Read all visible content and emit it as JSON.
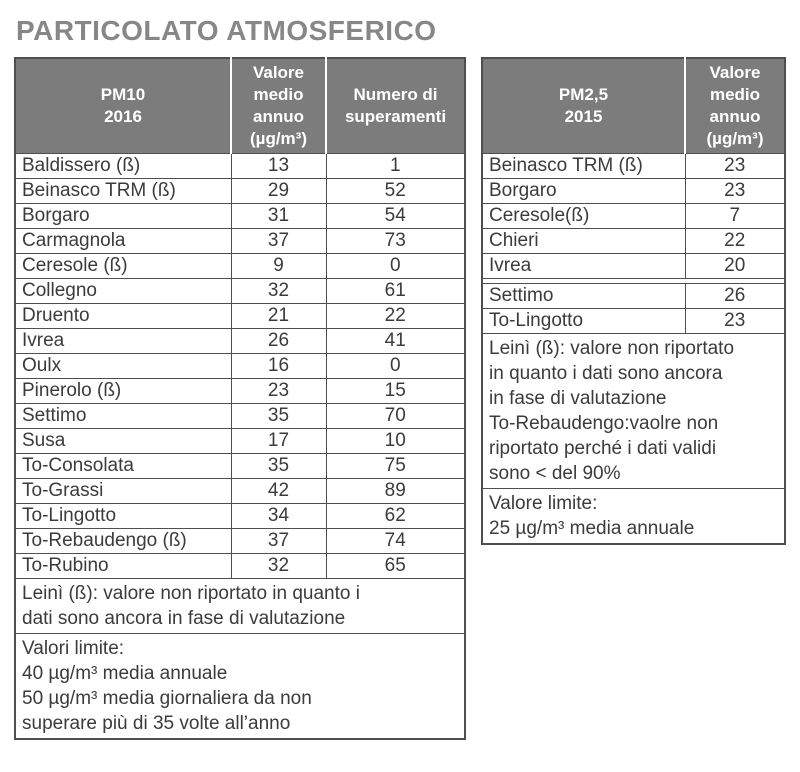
{
  "page": {
    "title": "PARTICOLATO ATMOSFERICO"
  },
  "colors": {
    "title_gray": "#878787",
    "header_bg": "#7c7c7c",
    "border": "#4f4f4f",
    "text": "#3b3b3b",
    "alert_red": "#c2382f"
  },
  "pm10_table": {
    "header": {
      "station": "PM10\n2016",
      "mean": "Valore\nmedio\nannuo\n(µg/m³)",
      "exceed": "Numero di\nsuperamenti"
    },
    "rows": [
      {
        "station": "Baldissero (ß)",
        "mean": "13",
        "mean_red": false,
        "exceed": "1",
        "exceed_red": false
      },
      {
        "station": "Beinasco TRM (ß)",
        "mean": "29",
        "mean_red": false,
        "exceed": "52",
        "exceed_red": true
      },
      {
        "station": "Borgaro",
        "mean": "31",
        "mean_red": false,
        "exceed": "54",
        "exceed_red": true
      },
      {
        "station": "Carmagnola",
        "mean": "37",
        "mean_red": false,
        "exceed": "73",
        "exceed_red": true
      },
      {
        "station": "Ceresole (ß)",
        "mean": "9",
        "mean_red": false,
        "exceed": "0",
        "exceed_red": false
      },
      {
        "station": "Collegno",
        "mean": "32",
        "mean_red": false,
        "exceed": "61",
        "exceed_red": true
      },
      {
        "station": "Druento",
        "mean": "21",
        "mean_red": false,
        "exceed": "22",
        "exceed_red": false
      },
      {
        "station": "Ivrea",
        "mean": "26",
        "mean_red": false,
        "exceed": "41",
        "exceed_red": true
      },
      {
        "station": "Oulx",
        "mean": "16",
        "mean_red": false,
        "exceed": "0",
        "exceed_red": false
      },
      {
        "station": "Pinerolo (ß)",
        "mean": "23",
        "mean_red": false,
        "exceed": "15",
        "exceed_red": false
      },
      {
        "station": "Settimo",
        "mean": "35",
        "mean_red": false,
        "exceed": "70",
        "exceed_red": true
      },
      {
        "station": "Susa",
        "mean": "17",
        "mean_red": false,
        "exceed": "10",
        "exceed_red": false
      },
      {
        "station": "To-Consolata",
        "mean": "35",
        "mean_red": false,
        "exceed": "75",
        "exceed_red": true
      },
      {
        "station": "To-Grassi",
        "mean": "42",
        "mean_red": true,
        "exceed": "89",
        "exceed_red": true
      },
      {
        "station": "To-Lingotto",
        "mean": "34",
        "mean_red": false,
        "exceed": "62",
        "exceed_red": true
      },
      {
        "station": "To-Rebaudengo (ß)",
        "mean": "37",
        "mean_red": false,
        "exceed": "74",
        "exceed_red": true
      },
      {
        "station": "To-Rubino",
        "mean": "32",
        "mean_red": false,
        "exceed": "65",
        "exceed_red": true
      }
    ],
    "note_leini": "Leinì (ß): valore non riportato in quanto i\ndati sono ancora in fase di valutazione",
    "note_limits": "Valori limite:\n40 µg/m³ media annuale\n50 µg/m³ media giornaliera da non\nsuperare più di 35 volte all’anno"
  },
  "pm25_table": {
    "header": {
      "station": "PM2,5\n2015",
      "mean": "Valore\nmedio\nannuo\n(µg/m³)"
    },
    "rows": [
      {
        "station": "Beinasco TRM (ß)",
        "mean": "23",
        "mean_red": false
      },
      {
        "station": "Borgaro",
        "mean": "23",
        "mean_red": false
      },
      {
        "station": "Ceresole(ß)",
        "mean": "7",
        "mean_red": false
      },
      {
        "station": "Chieri",
        "mean": "22",
        "mean_red": false
      },
      {
        "station": "Ivrea",
        "mean": "20",
        "mean_red": false
      },
      {
        "station": "Settimo",
        "mean": "26",
        "mean_red": true,
        "gap_before": true
      },
      {
        "station": "To-Lingotto",
        "mean": "23",
        "mean_red": false
      }
    ],
    "note_leini": "Leinì (ß): valore non riportato\nin quanto i dati sono ancora\nin fase di valutazione\nTo-Rebaudengo:vaolre non\nriportato perché i dati validi\nsono < del 90%",
    "note_limit": "Valore limite:\n25 µg/m³ media annuale"
  }
}
